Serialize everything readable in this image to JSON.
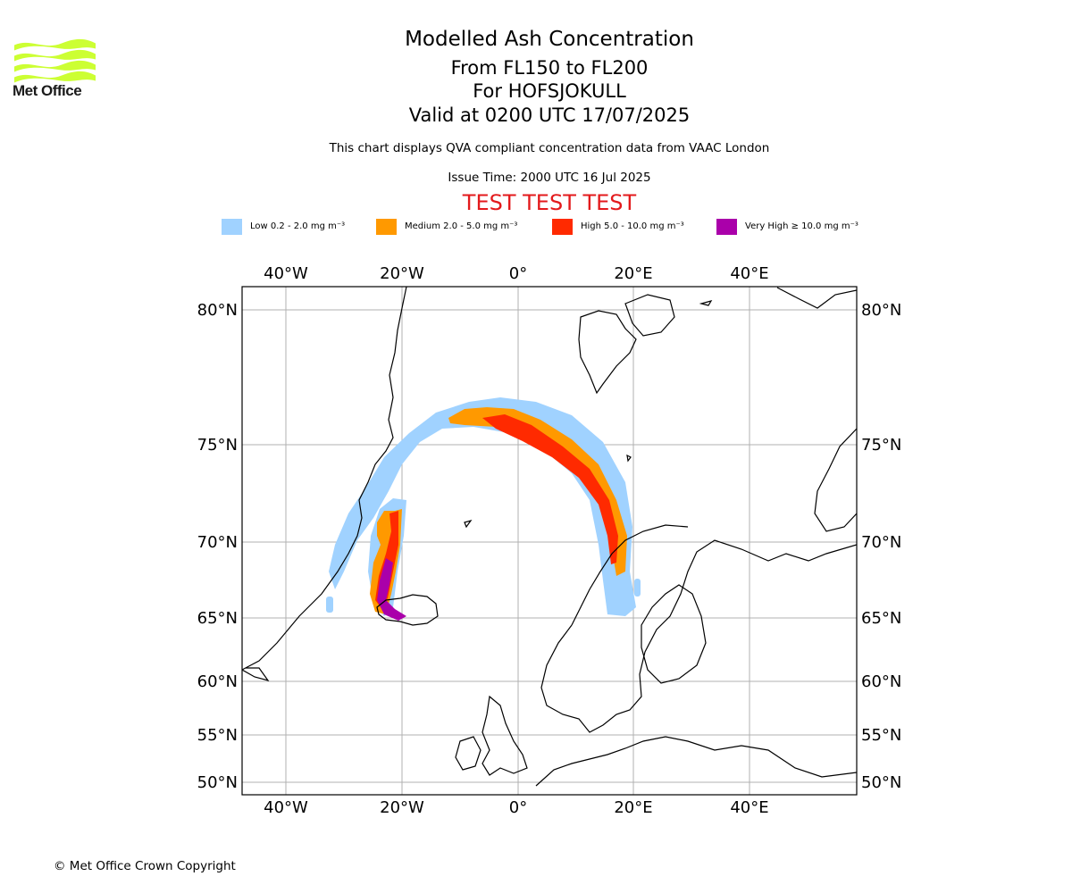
{
  "logo": {
    "text": "Met Office",
    "color": "#ccff33"
  },
  "titles": {
    "title": "Modelled Ash Concentration",
    "levels": "From FL150 to FL200",
    "volcano": "For HOFSJOKULL",
    "valid": "Valid at 0200 UTC 17/07/2025",
    "description": "This chart displays QVA compliant concentration data from VAAC London",
    "issue": "Issue Time: 2000 UTC 16 Jul 2025",
    "test_banner": "TEST TEST TEST"
  },
  "legend": [
    {
      "label": "Low 0.2 - 2.0 mg m⁻³",
      "color": "#a0d2ff"
    },
    {
      "label": "Medium 2.0 - 5.0 mg m⁻³",
      "color": "#ff9900"
    },
    {
      "label": "High 5.0 - 10.0 mg m⁻³",
      "color": "#ff2a00"
    },
    {
      "label": "Very High ≥ 10.0 mg m⁻³",
      "color": "#aa00aa"
    }
  ],
  "map": {
    "lon_ticks": [
      "40°W",
      "20°W",
      "0°",
      "20°E",
      "40°E"
    ],
    "lat_ticks": [
      "80°N",
      "75°N",
      "70°N",
      "65°N",
      "60°N",
      "55°N",
      "50°N"
    ],
    "gridlines": true
  },
  "footer": {
    "copyright": "© Met Office Crown Copyright"
  }
}
